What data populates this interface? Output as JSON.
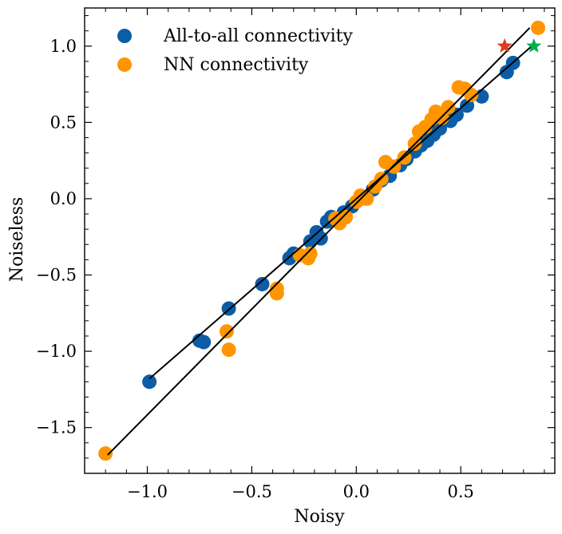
{
  "chart_data": {
    "type": "scatter",
    "title": "",
    "xlabel": "Noisy",
    "ylabel": "Noiseless",
    "xlim": [
      -1.3,
      0.95
    ],
    "ylim": [
      -1.8,
      1.25
    ],
    "xticks": [
      -1.0,
      -0.5,
      0.0,
      0.5
    ],
    "xtick_labels": [
      "−1.0",
      "−0.5",
      "0.0",
      "0.5"
    ],
    "yticks": [
      -1.5,
      -1.0,
      -0.5,
      0.0,
      0.5,
      1.0
    ],
    "ytick_labels": [
      "−1.5",
      "−1.0",
      "−0.5",
      "0.0",
      "0.5",
      "1.0"
    ],
    "grid": false,
    "legend_position": "top-left",
    "series": [
      {
        "name": "All-to-all connectivity",
        "color": "#0c5da5",
        "points": [
          [
            -0.99,
            -1.2
          ],
          [
            -0.75,
            -0.93
          ],
          [
            -0.73,
            -0.94
          ],
          [
            -0.61,
            -0.72
          ],
          [
            -0.45,
            -0.56
          ],
          [
            -0.32,
            -0.39
          ],
          [
            -0.3,
            -0.36
          ],
          [
            -0.22,
            -0.28
          ],
          [
            -0.19,
            -0.22
          ],
          [
            -0.17,
            -0.26
          ],
          [
            -0.14,
            -0.15
          ],
          [
            -0.12,
            -0.12
          ],
          [
            -0.06,
            -0.09
          ],
          [
            -0.02,
            -0.05
          ],
          [
            0.02,
            0.0
          ],
          [
            0.08,
            0.06
          ],
          [
            0.12,
            0.12
          ],
          [
            0.16,
            0.15
          ],
          [
            0.21,
            0.22
          ],
          [
            0.24,
            0.26
          ],
          [
            0.28,
            0.31
          ],
          [
            0.31,
            0.35
          ],
          [
            0.34,
            0.38
          ],
          [
            0.37,
            0.42
          ],
          [
            0.4,
            0.46
          ],
          [
            0.45,
            0.51
          ],
          [
            0.48,
            0.55
          ],
          [
            0.53,
            0.61
          ],
          [
            0.6,
            0.67
          ],
          [
            0.72,
            0.83
          ],
          [
            0.75,
            0.89
          ]
        ]
      },
      {
        "name": "NN connectivity",
        "color": "#ff9500",
        "points": [
          [
            -1.2,
            -1.67
          ],
          [
            -0.62,
            -0.87
          ],
          [
            -0.61,
            -0.99
          ],
          [
            -0.38,
            -0.59
          ],
          [
            -0.38,
            -0.62
          ],
          [
            -0.27,
            -0.37
          ],
          [
            -0.23,
            -0.39
          ],
          [
            -0.22,
            -0.36
          ],
          [
            -0.1,
            -0.13
          ],
          [
            -0.08,
            -0.16
          ],
          [
            -0.05,
            -0.12
          ],
          [
            0.0,
            -0.02
          ],
          [
            0.02,
            0.02
          ],
          [
            0.05,
            0.0
          ],
          [
            0.09,
            0.08
          ],
          [
            0.12,
            0.13
          ],
          [
            0.14,
            0.24
          ],
          [
            0.18,
            0.21
          ],
          [
            0.23,
            0.27
          ],
          [
            0.28,
            0.36
          ],
          [
            0.3,
            0.44
          ],
          [
            0.33,
            0.47
          ],
          [
            0.36,
            0.52
          ],
          [
            0.38,
            0.57
          ],
          [
            0.41,
            0.53
          ],
          [
            0.44,
            0.6
          ],
          [
            0.49,
            0.73
          ],
          [
            0.52,
            0.72
          ],
          [
            0.55,
            0.68
          ],
          [
            0.87,
            1.12
          ]
        ]
      }
    ],
    "fit_lines": [
      {
        "name": "all-to-all fit",
        "x": [
          -0.99,
          0.84
        ],
        "y": [
          -1.18,
          1.0
        ]
      },
      {
        "name": "nn fit",
        "x": [
          -1.19,
          0.83
        ],
        "y": [
          -1.68,
          1.12
        ]
      }
    ],
    "star_markers": [
      {
        "name": "red star",
        "x": 0.71,
        "y": 1.0,
        "color": "#e03a1e"
      },
      {
        "name": "green star",
        "x": 0.85,
        "y": 1.0,
        "color": "#00b050"
      }
    ]
  }
}
